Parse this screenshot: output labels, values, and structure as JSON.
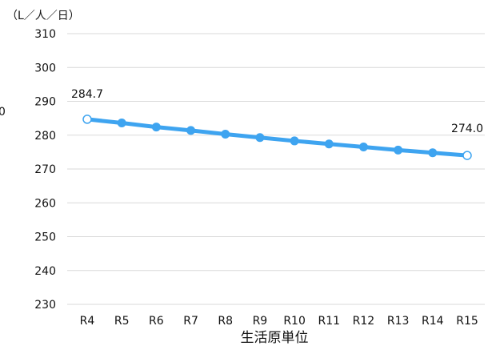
{
  "chart_data": {
    "type": "line",
    "title": "生活原単位",
    "unit_label": "（L／人／日）",
    "xlabel": "",
    "ylabel": "",
    "ylim": [
      230,
      310
    ],
    "yticks": [
      310,
      300,
      290,
      280,
      270,
      260,
      250,
      240,
      230
    ],
    "grid": true,
    "categories": [
      "R4",
      "R5",
      "R6",
      "R7",
      "R8",
      "R9",
      "R10",
      "R11",
      "R12",
      "R13",
      "R14",
      "R15"
    ],
    "series": [
      {
        "values": [
          284.7,
          283.6,
          282.4,
          281.4,
          280.3,
          279.3,
          278.3,
          277.4,
          276.5,
          275.6,
          274.8,
          274.0
        ],
        "color": "#3ea4f0"
      }
    ],
    "data_labels": [
      {
        "index": 0,
        "text": "284.7"
      },
      {
        "index": 11,
        "text": "274.0"
      }
    ],
    "edge_fragment": "0"
  }
}
